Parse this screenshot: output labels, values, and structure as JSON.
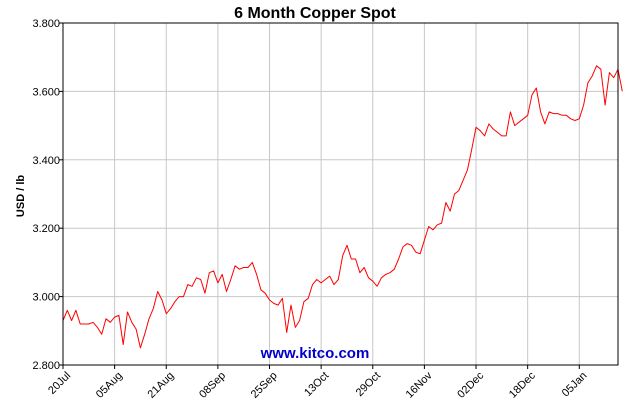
{
  "chart_data": {
    "type": "line",
    "title": "6 Month Copper Spot",
    "ylabel": "USD / lb",
    "xlabel": "",
    "watermark": "www.kitco.com",
    "ylim": [
      2.8,
      3.8
    ],
    "yticks": [
      2.8,
      3.0,
      3.2,
      3.4,
      3.6,
      3.8
    ],
    "ytick_labels": [
      "2.800",
      "3.000",
      "3.200",
      "3.400",
      "3.600",
      "3.800"
    ],
    "xlim_index": [
      0,
      129
    ],
    "xticks": [
      {
        "label": "20Jul",
        "index": 0
      },
      {
        "label": "05Aug",
        "index": 12
      },
      {
        "label": "21Aug",
        "index": 24
      },
      {
        "label": "08Sep",
        "index": 36
      },
      {
        "label": "25Sep",
        "index": 48
      },
      {
        "label": "13Oct",
        "index": 60
      },
      {
        "label": "29Oct",
        "index": 72
      },
      {
        "label": "16Nov",
        "index": 84
      },
      {
        "label": "02Dec",
        "index": 96
      },
      {
        "label": "18Dec",
        "index": 108
      },
      {
        "label": "05Jan",
        "index": 120
      }
    ],
    "grid": true,
    "colors": {
      "line": "#ff0000",
      "grid": "#c8c8c8",
      "watermark": "#0000cc",
      "axis": "#000000"
    },
    "series": [
      {
        "values": [
          2.93,
          2.96,
          2.93,
          2.96,
          2.92,
          2.92,
          2.92,
          2.925,
          2.91,
          2.89,
          2.935,
          2.925,
          2.94,
          2.945,
          2.86,
          2.955,
          2.925,
          2.905,
          2.85,
          2.89,
          2.935,
          2.965,
          3.015,
          2.99,
          2.95,
          2.965,
          2.985,
          3.0,
          3.0,
          3.035,
          3.03,
          3.055,
          3.05,
          3.01,
          3.07,
          3.075,
          3.04,
          3.065,
          3.015,
          3.05,
          3.09,
          3.08,
          3.085,
          3.085,
          3.1,
          3.065,
          3.02,
          3.01,
          2.99,
          2.98,
          2.975,
          2.995,
          2.895,
          2.975,
          2.91,
          2.93,
          2.985,
          2.995,
          3.035,
          3.05,
          3.04,
          3.05,
          3.06,
          3.035,
          3.05,
          3.12,
          3.15,
          3.11,
          3.11,
          3.07,
          3.085,
          3.055,
          3.045,
          3.03,
          3.055,
          3.065,
          3.07,
          3.08,
          3.11,
          3.145,
          3.155,
          3.15,
          3.13,
          3.125,
          3.165,
          3.205,
          3.195,
          3.21,
          3.215,
          3.275,
          3.25,
          3.3,
          3.31,
          3.34,
          3.37,
          3.43,
          3.495,
          3.485,
          3.47,
          3.505,
          3.49,
          3.48,
          3.47,
          3.47,
          3.54,
          3.5,
          3.51,
          3.52,
          3.53,
          3.59,
          3.61,
          3.54,
          3.505,
          3.54,
          3.535,
          3.535,
          3.53,
          3.53,
          3.52,
          3.515,
          3.52,
          3.56,
          3.625,
          3.645,
          3.675,
          3.665,
          3.56,
          3.655,
          3.64,
          3.665,
          3.6
        ]
      }
    ]
  }
}
